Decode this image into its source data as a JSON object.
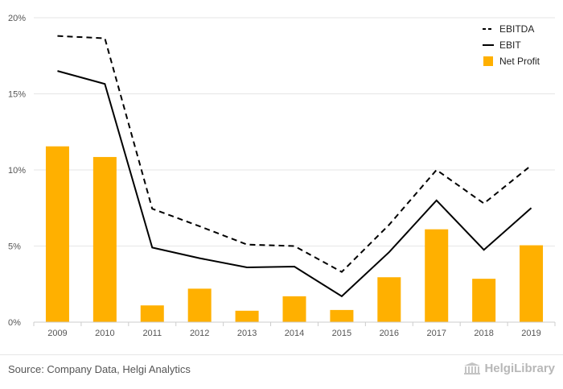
{
  "chart_data": {
    "type": "bar",
    "categories": [
      "2009",
      "2010",
      "2011",
      "2012",
      "2013",
      "2014",
      "2015",
      "2016",
      "2017",
      "2018",
      "2019"
    ],
    "series": [
      {
        "name": "EBITDA",
        "type": "line",
        "style": "dashed",
        "color": "#000000",
        "values": [
          18.8,
          18.65,
          7.45,
          6.3,
          5.1,
          5.0,
          3.3,
          6.4,
          10.0,
          7.8,
          10.3
        ]
      },
      {
        "name": "EBIT",
        "type": "line",
        "style": "solid",
        "color": "#000000",
        "values": [
          16.5,
          15.65,
          4.9,
          4.2,
          3.6,
          3.65,
          1.7,
          4.6,
          8.0,
          4.75,
          7.5
        ]
      },
      {
        "name": "Net Profit",
        "type": "bar",
        "color": "#FFB000",
        "values": [
          11.55,
          10.85,
          1.1,
          2.2,
          0.75,
          1.7,
          0.8,
          2.95,
          6.1,
          2.85,
          5.05
        ]
      }
    ],
    "ylim": [
      0,
      20
    ],
    "yticks": [
      0,
      5,
      10,
      15,
      20
    ],
    "ytick_labels": [
      "0%",
      "5%",
      "10%",
      "15%",
      "20%"
    ],
    "grid": true,
    "legend_position": "top-right"
  },
  "footer": {
    "source": "Source: Company Data, Helgi Analytics",
    "logo_text": "HelgiLibrary"
  },
  "colors": {
    "bar": "#FFB000",
    "line": "#000000",
    "grid": "#e6e6e6",
    "axis": "#cccccc"
  }
}
